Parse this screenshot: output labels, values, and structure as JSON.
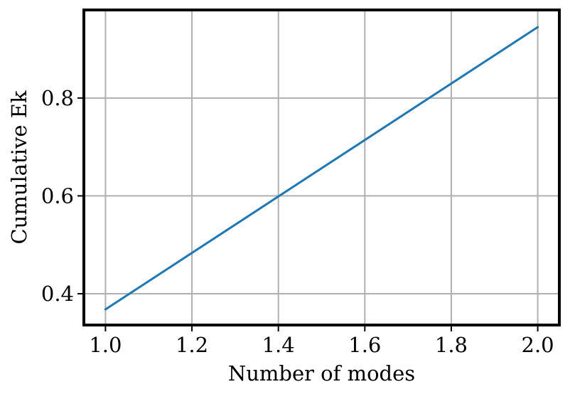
{
  "chart_data": {
    "type": "line",
    "title": "",
    "xlabel": "Number of modes",
    "ylabel": "Cumulative Ek",
    "xlim": [
      0.95,
      2.05
    ],
    "ylim": [
      0.336,
      0.98
    ],
    "x_ticks": [
      1.0,
      1.2,
      1.4,
      1.6,
      1.8,
      2.0
    ],
    "x_tick_labels": [
      "1.0",
      "1.2",
      "1.4",
      "1.6",
      "1.8",
      "2.0"
    ],
    "y_ticks": [
      0.4,
      0.6,
      0.8
    ],
    "y_tick_labels": [
      "0.4",
      "0.6",
      "0.8"
    ],
    "grid": true,
    "legend": "none",
    "series": [
      {
        "x": [
          1,
          2
        ],
        "y": [
          0.368,
          0.945
        ],
        "color": "#1f77b4"
      }
    ]
  },
  "colors": {
    "line": "#1f77b4",
    "grid": "#b0b0b0",
    "frame": "#000000"
  }
}
